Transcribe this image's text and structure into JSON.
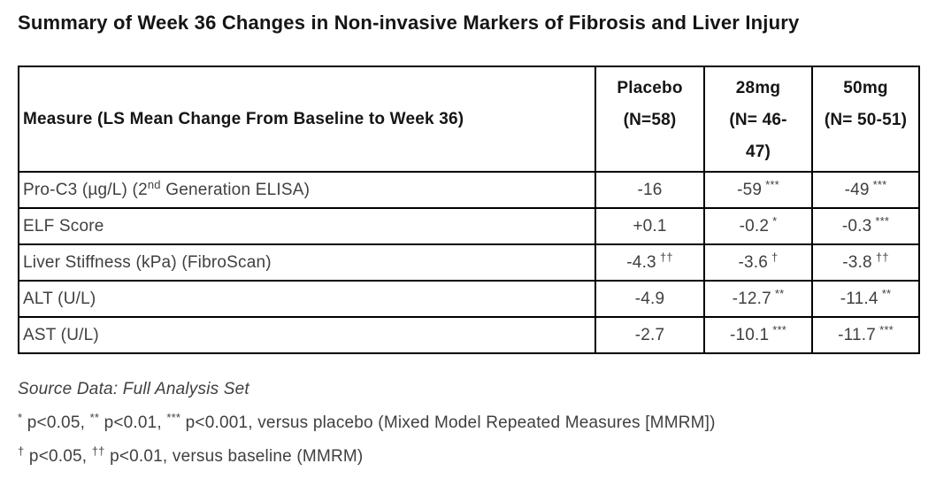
{
  "title": "Summary of Week 36 Changes in Non-invasive Markers of Fibrosis and Liver Injury",
  "colors": {
    "background": "#ffffff",
    "heading_text": "#151515",
    "body_text": "#404040",
    "table_border": "#000000"
  },
  "table": {
    "measure_header": "Measure (LS Mean Change From Baseline to Week 36)",
    "columns": [
      {
        "name": "placebo",
        "lines": [
          "Placebo",
          "(N=58)"
        ]
      },
      {
        "name": "28mg",
        "lines": [
          "28mg",
          "(N= 46-",
          "47)"
        ]
      },
      {
        "name": "50mg",
        "lines": [
          "50mg",
          "(N= 50-51)"
        ]
      }
    ],
    "rows": [
      {
        "measure": {
          "pre": "Pro-C3 (µg/L) (2",
          "sup": "nd",
          "post": " Generation ELISA)"
        },
        "placebo": {
          "value": "-16",
          "sup": ""
        },
        "mg28": {
          "value": "-59",
          "sup": "***"
        },
        "mg50": {
          "value": "-49",
          "sup": "***"
        }
      },
      {
        "measure": {
          "pre": "ELF Score",
          "sup": "",
          "post": ""
        },
        "placebo": {
          "value": "+0.1",
          "sup": ""
        },
        "mg28": {
          "value": "-0.2",
          "sup": "*"
        },
        "mg50": {
          "value": "-0.3",
          "sup": "***"
        }
      },
      {
        "measure": {
          "pre": "Liver Stiffness (kPa) (FibroScan)",
          "sup": "",
          "post": ""
        },
        "placebo": {
          "value": "-4.3",
          "sup": "††"
        },
        "mg28": {
          "value": "-3.6",
          "sup": "†"
        },
        "mg50": {
          "value": "-3.8",
          "sup": "††"
        }
      },
      {
        "measure": {
          "pre": "ALT (U/L)",
          "sup": "",
          "post": ""
        },
        "placebo": {
          "value": "-4.9",
          "sup": ""
        },
        "mg28": {
          "value": "-12.7",
          "sup": "**"
        },
        "mg50": {
          "value": "-11.4",
          "sup": "**"
        }
      },
      {
        "measure": {
          "pre": "AST (U/L)",
          "sup": "",
          "post": ""
        },
        "placebo": {
          "value": "-2.7",
          "sup": ""
        },
        "mg28": {
          "value": "-10.1",
          "sup": "***"
        },
        "mg50": {
          "value": "-11.7",
          "sup": "***"
        }
      }
    ]
  },
  "footnotes": {
    "source": "Source Data: Full Analysis Set",
    "line1": {
      "s1": "*",
      "t1": "p<0.05,",
      "s2": "**",
      "t2": "p<0.01,",
      "s3": "***",
      "t3": "p<0.001, versus placebo (Mixed Model Repeated Measures [MMRM])"
    },
    "line2": {
      "s1": "†",
      "t1": "p<0.05,",
      "s2": "††",
      "t2": "p<0.01, versus baseline (MMRM)"
    }
  }
}
